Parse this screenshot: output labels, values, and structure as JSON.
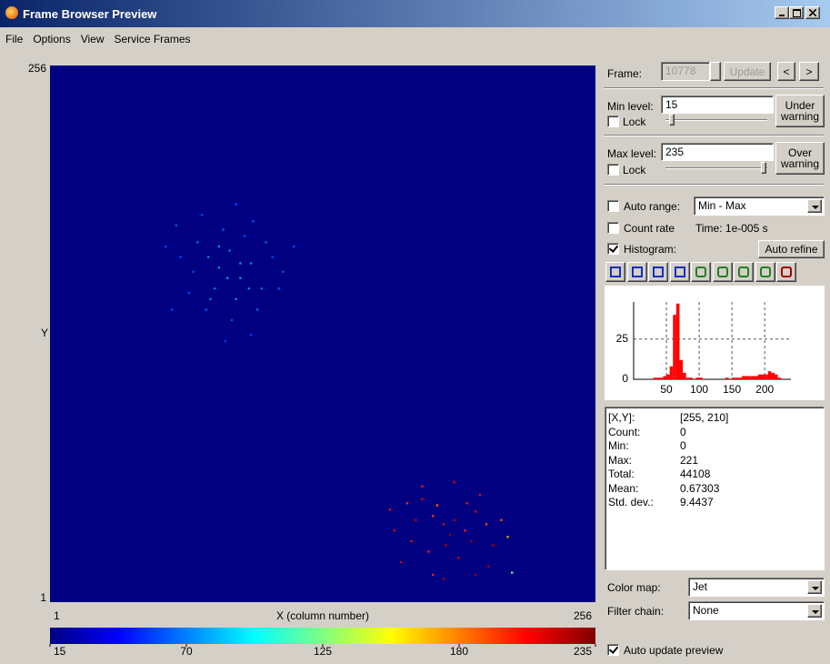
{
  "window": {
    "title": "Frame Browser Preview"
  },
  "menu": [
    "File",
    "Options",
    "View",
    "Service Frames"
  ],
  "image": {
    "xlim": [
      1,
      256
    ],
    "ylim": [
      1,
      256
    ],
    "xticks": [
      1,
      256
    ],
    "yticks": [
      1,
      256
    ],
    "xlabel": "X (column number)",
    "ylabel": "Y",
    "pixels": [
      [
        60,
        180,
        60
      ],
      [
        70,
        172,
        65
      ],
      [
        75,
        165,
        70
      ],
      [
        80,
        160,
        72
      ],
      [
        85,
        168,
        68
      ],
      [
        90,
        155,
        75
      ],
      [
        95,
        162,
        70
      ],
      [
        100,
        150,
        65
      ],
      [
        78,
        150,
        66
      ],
      [
        88,
        145,
        72
      ],
      [
        92,
        175,
        62
      ],
      [
        82,
        178,
        64
      ],
      [
        68,
        158,
        60
      ],
      [
        105,
        165,
        58
      ],
      [
        110,
        158,
        62
      ],
      [
        98,
        140,
        66
      ],
      [
        86,
        135,
        60
      ],
      [
        74,
        140,
        62
      ],
      [
        62,
        165,
        58
      ],
      [
        102,
        172,
        64
      ],
      [
        84,
        155,
        78
      ],
      [
        90,
        162,
        76
      ],
      [
        80,
        170,
        74
      ],
      [
        94,
        150,
        70
      ],
      [
        76,
        145,
        68
      ],
      [
        108,
        150,
        60
      ],
      [
        66,
        148,
        58
      ],
      [
        72,
        185,
        60
      ],
      [
        96,
        182,
        62
      ],
      [
        88,
        190,
        58
      ],
      [
        55,
        170,
        58
      ],
      [
        115,
        170,
        58
      ],
      [
        83,
        125,
        55
      ],
      [
        58,
        140,
        58
      ],
      [
        95,
        128,
        56
      ],
      [
        168,
        48,
        200
      ],
      [
        175,
        50,
        210
      ],
      [
        160,
        45,
        205
      ],
      [
        180,
        42,
        195
      ],
      [
        185,
        38,
        215
      ],
      [
        190,
        40,
        220
      ],
      [
        195,
        35,
        200
      ],
      [
        200,
        44,
        210
      ],
      [
        205,
        38,
        190
      ],
      [
        170,
        30,
        205
      ],
      [
        178,
        25,
        200
      ],
      [
        186,
        28,
        225
      ],
      [
        192,
        22,
        215
      ],
      [
        198,
        30,
        230
      ],
      [
        208,
        28,
        220
      ],
      [
        188,
        33,
        232
      ],
      [
        182,
        47,
        185
      ],
      [
        162,
        35,
        212
      ],
      [
        172,
        40,
        218
      ],
      [
        196,
        48,
        205
      ],
      [
        212,
        40,
        190
      ],
      [
        215,
        32,
        175
      ],
      [
        202,
        52,
        208
      ],
      [
        190,
        58,
        212
      ],
      [
        175,
        56,
        200
      ],
      [
        165,
        20,
        215
      ],
      [
        206,
        18,
        225
      ],
      [
        200,
        14,
        228
      ],
      [
        180,
        14,
        200
      ],
      [
        185,
        12,
        222
      ],
      [
        217,
        15,
        120
      ]
    ]
  },
  "colorbar": {
    "lim": [
      15,
      235
    ],
    "ticks": [
      15,
      70,
      125,
      180,
      235
    ]
  },
  "controls": {
    "frame": {
      "label": "Frame:",
      "value": 10778,
      "update": "Update",
      "prev": "<",
      "next": ">"
    },
    "min_level": {
      "label": "Min level:",
      "value": 15,
      "lock": "Lock",
      "warning": "Under warning"
    },
    "max_level": {
      "label": "Max level:",
      "value": 235,
      "lock": "Lock",
      "warning": "Over warning"
    },
    "auto_range": {
      "label": "Auto range:",
      "checked": false,
      "option": "Min - Max"
    },
    "count_rate": {
      "label": "Count rate",
      "checked": false,
      "time": "Time: 1e-005 s"
    },
    "histogram": {
      "label": "Histogram:",
      "checked": true,
      "auto_refine": "Auto refine"
    },
    "color_map": {
      "label": "Color map:",
      "value": "Jet"
    },
    "filter_chain": {
      "label": "Filter chain:",
      "value": "None"
    },
    "auto_update": {
      "label": "Auto update preview",
      "checked": true
    }
  },
  "histogram": {
    "type": "histogram",
    "color": "#ff0000",
    "bins": [
      15,
      20,
      25,
      30,
      35,
      40,
      45,
      50,
      55,
      60,
      65,
      70,
      75,
      80,
      85,
      90,
      95,
      100,
      105,
      110,
      115,
      120,
      125,
      130,
      135,
      140,
      145,
      150,
      155,
      160,
      165,
      170,
      175,
      180,
      185,
      190,
      195,
      200,
      205,
      210,
      215,
      220,
      225,
      230,
      235
    ],
    "values": [
      0,
      0,
      0,
      1,
      1,
      1,
      2,
      3,
      8,
      40,
      47,
      12,
      4,
      1,
      1,
      0,
      1,
      1,
      0,
      0,
      0,
      0,
      0,
      0,
      0,
      1,
      0,
      1,
      1,
      1,
      2,
      2,
      2,
      2,
      2,
      3,
      3,
      3,
      5,
      4,
      3,
      1,
      0,
      0
    ],
    "xlim": [
      0,
      240
    ],
    "ylim": [
      0,
      48
    ],
    "xticks": [
      50,
      100,
      150,
      200
    ],
    "yticks": [
      0,
      25
    ],
    "grid": true
  },
  "stats": [
    [
      "[X,Y]:",
      "[255, 210]"
    ],
    [
      "Count:",
      0
    ],
    [
      "Min:",
      0
    ],
    [
      "Max:",
      221
    ],
    [
      "Total:",
      44108
    ],
    [
      "Mean:",
      0.67303
    ],
    [
      "Std. dev.:",
      9.4437
    ]
  ]
}
